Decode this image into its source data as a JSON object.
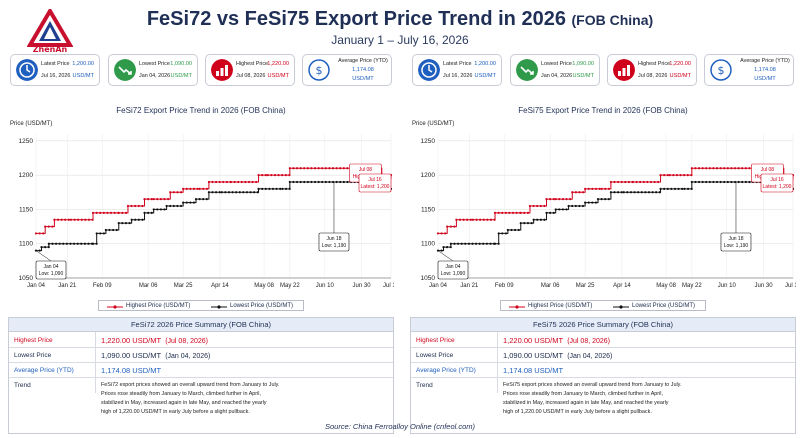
{
  "header": {
    "logo_text": "ZhenAn",
    "title_main": "FeSi72 vs FeSi75 Export Price Trend in 2026",
    "title_sub": "(FOB China)",
    "date_range": "January 1 – July 16, 2026",
    "source": "Source: China Ferroalloy Online (cnfeol.com)"
  },
  "colors": {
    "high": "#d0021b",
    "low": "#111111",
    "accent": "#1f5fbf",
    "green": "#2e9a4a"
  },
  "panels": [
    {
      "cards": {
        "latest": {
          "label": "Latest Price",
          "date": "Jul 16, 2026",
          "value": "1,200.00",
          "unit": "USD/MT"
        },
        "lowest": {
          "label": "Lowest Price",
          "date": "Jan 04, 2026",
          "value": "1,090.00",
          "unit": "USD/MT"
        },
        "highest": {
          "label": "Highest Price",
          "date": "Jul 08, 2026",
          "value": "1,220.00",
          "unit": "USD/MT"
        },
        "average": {
          "label": "Average Price (YTD)",
          "value": "1,174.08",
          "unit": "USD/MT"
        }
      },
      "legend_high": "Highest Price (USD/MT)",
      "legend_low": "Lowest Price (USD/MT)",
      "summary": {
        "title": "FeSi72 2026 Price Summary (FOB China)",
        "highest_label": "Highest Price",
        "highest_value": "1,220.00 USD/MT",
        "highest_date": "(Jul 08, 2026)",
        "lowest_label": "Lowest Price",
        "lowest_value": "1,090.00 USD/MT",
        "lowest_date": "(Jan 04, 2026)",
        "avg_label": "Average Price (YTD)",
        "avg_value": "1,174.08 USD/MT",
        "trend_label": "Trend",
        "trend_line1": "FeSi72 export prices showed an overall upward trend from January to July.",
        "trend_line2": "Prices rose steadily from January to March, climbed further in April,",
        "trend_line3": "stabilized in May, increased again in late May, and reached the yearly",
        "trend_line4": "high of 1,220.00 USD/MT in early July before a slight pullback."
      }
    },
    {
      "cards": {
        "latest": {
          "label": "Latest Price",
          "date": "Jul 16, 2026",
          "value": "1,200.00",
          "unit": "USD/MT"
        },
        "lowest": {
          "label": "Lowest Price",
          "date": "Jan 04, 2026",
          "value": "1,090.00",
          "unit": "USD/MT"
        },
        "highest": {
          "label": "Highest Price",
          "date": "Jul 08, 2026",
          "value": "1,220.00",
          "unit": "USD/MT"
        },
        "average": {
          "label": "Average Price (YTD)",
          "value": "1,174.08",
          "unit": "USD/MT"
        }
      },
      "legend_high": "Highest Price (USD/MT)",
      "legend_low": "Lowest Price (USD/MT)",
      "summary": {
        "title": "FeSi75 2026 Price Summary (FOB China)",
        "highest_label": "Highest Price",
        "highest_value": "1,220.00 USD/MT",
        "highest_date": "(Jul 08, 2026)",
        "lowest_label": "Lowest Price",
        "lowest_value": "1,090.00 USD/MT",
        "lowest_date": "(Jan 04, 2026)",
        "avg_label": "Average Price (YTD)",
        "avg_value": "1,174.08 USD/MT",
        "trend_label": "Trend",
        "trend_line1": "FeSi75 export prices showed an overall upward trend from January to July.",
        "trend_line2": "Prices rose steadily from January to March, climbed further in April,",
        "trend_line3": "stabilized in May, increased again in late May, and reached the yearly",
        "trend_line4": "high of 1,220.00 USD/MT in early July before a slight pullback."
      }
    }
  ],
  "chart_data": [
    {
      "type": "line",
      "title": "FeSi72 Export Price Trend in 2026 (FOB China)",
      "ylabel": "Price (USD/MT)",
      "ylim": [
        1050,
        1260
      ],
      "yticks": [
        1050,
        1100,
        1150,
        1200,
        1250
      ],
      "x_tick_labels": [
        "Jan 04",
        "Jan 21",
        "Feb 09",
        "Mar 06",
        "Mar 25",
        "Apr 14",
        "May 08",
        "May 22",
        "Jun 10",
        "Jun 30",
        "Jul 16"
      ],
      "x_tick_days": [
        4,
        21,
        40,
        65,
        84,
        104,
        128,
        142,
        161,
        181,
        197
      ],
      "x_range_days": [
        4,
        197
      ],
      "grid": true,
      "legend": "bottom",
      "series": [
        {
          "name": "Highest Price (USD/MT)",
          "color": "#d0021b",
          "x": [
            4,
            9,
            14,
            23,
            35,
            49,
            54,
            63,
            68,
            77,
            84,
            93,
            98,
            110,
            125,
            130,
            142,
            181,
            192,
            197
          ],
          "y": [
            1115,
            1125,
            1135,
            1135,
            1145,
            1145,
            1155,
            1165,
            1165,
            1175,
            1180,
            1180,
            1190,
            1190,
            1200,
            1200,
            1210,
            1210,
            1195,
            1200
          ]
        },
        {
          "name": "Lowest Price (USD/MT)",
          "color": "#111111",
          "x": [
            4,
            7,
            11,
            35,
            37,
            42,
            49,
            56,
            63,
            68,
            75,
            84,
            91,
            98,
            105,
            125,
            138,
            142,
            181,
            185,
            197
          ],
          "y": [
            1090,
            1095,
            1100,
            1100,
            1115,
            1120,
            1130,
            1135,
            1145,
            1150,
            1155,
            1160,
            1165,
            1175,
            1175,
            1180,
            1180,
            1190,
            1190,
            1180,
            1180
          ]
        }
      ],
      "annotations": [
        {
          "text_line1": "Jan 04",
          "text_line2": "Low: 1,090",
          "x": 4,
          "y": 1090,
          "color": "#111111"
        },
        {
          "text_line1": "Jun 18",
          "text_line2": "Low: 1,190",
          "x": 166,
          "y": 1190,
          "color": "#111111"
        },
        {
          "text_line1": "Jul 08",
          "text_line2": "High: 1,220",
          "x": 182,
          "y": 1210,
          "color": "#d0021b"
        },
        {
          "text_line1": "Jul 16",
          "text_line2": "Latest: 1,200",
          "x": 197,
          "y": 1200,
          "color": "#d0021b"
        }
      ]
    },
    {
      "type": "line",
      "title": "FeSi75 Export Price Trend in 2026 (FOB China)",
      "ylabel": "Price (USD/MT)",
      "ylim": [
        1050,
        1260
      ],
      "yticks": [
        1050,
        1100,
        1150,
        1200,
        1250
      ],
      "x_tick_labels": [
        "Jan 04",
        "Jan 21",
        "Feb 09",
        "Mar 06",
        "Mar 25",
        "Apr 14",
        "May 08",
        "May 22",
        "Jun 10",
        "Jun 30",
        "Jul 16"
      ],
      "x_tick_days": [
        4,
        21,
        40,
        65,
        84,
        104,
        128,
        142,
        161,
        181,
        197
      ],
      "x_range_days": [
        4,
        197
      ],
      "grid": true,
      "legend": "bottom",
      "series": [
        {
          "name": "Highest Price (USD/MT)",
          "color": "#d0021b",
          "x": [
            4,
            9,
            14,
            23,
            35,
            49,
            54,
            63,
            68,
            77,
            84,
            93,
            98,
            110,
            125,
            130,
            142,
            181,
            192,
            197
          ],
          "y": [
            1115,
            1125,
            1135,
            1135,
            1145,
            1145,
            1155,
            1165,
            1165,
            1175,
            1180,
            1180,
            1190,
            1190,
            1200,
            1200,
            1210,
            1210,
            1195,
            1200
          ]
        },
        {
          "name": "Lowest Price (USD/MT)",
          "color": "#111111",
          "x": [
            4,
            7,
            11,
            35,
            37,
            42,
            49,
            56,
            63,
            68,
            75,
            84,
            91,
            98,
            105,
            125,
            138,
            142,
            181,
            185,
            197
          ],
          "y": [
            1090,
            1095,
            1100,
            1100,
            1115,
            1120,
            1130,
            1135,
            1145,
            1150,
            1155,
            1160,
            1165,
            1175,
            1175,
            1180,
            1180,
            1190,
            1190,
            1180,
            1180
          ]
        }
      ],
      "annotations": [
        {
          "text_line1": "Jan 04",
          "text_line2": "Low: 1,090",
          "x": 4,
          "y": 1090,
          "color": "#111111"
        },
        {
          "text_line1": "Jun 18",
          "text_line2": "Low: 1,190",
          "x": 166,
          "y": 1190,
          "color": "#111111"
        },
        {
          "text_line1": "Jul 08",
          "text_line2": "High: 1,220",
          "x": 182,
          "y": 1210,
          "color": "#d0021b"
        },
        {
          "text_line1": "Jul 16",
          "text_line2": "Latest: 1,200",
          "x": 197,
          "y": 1200,
          "color": "#d0021b"
        }
      ]
    }
  ]
}
